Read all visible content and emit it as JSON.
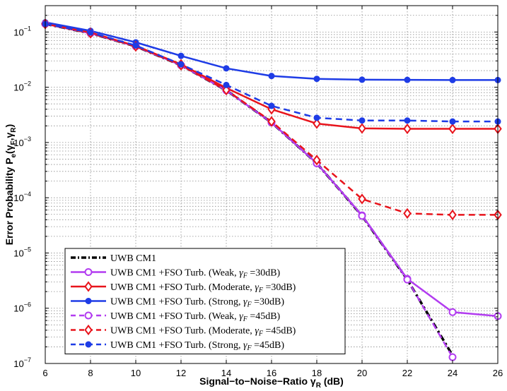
{
  "chart_data": {
    "type": "line",
    "xscale": "linear",
    "yscale": "log",
    "xlabel": {
      "main": "Signal−to−Noise−Ratio γ",
      "sub": "R",
      "tail": " (dB)"
    },
    "ylabel": {
      "main": "Error Probability P",
      "sub": "e",
      "args": "(γ",
      "sub2": "F",
      "comma": ",γ",
      "sub3": "R",
      "close": ")"
    },
    "xlim": [
      6,
      26
    ],
    "ylim": [
      1e-07,
      0.3
    ],
    "xticks": [
      "6",
      "8",
      "10",
      "12",
      "14",
      "16",
      "18",
      "20",
      "22",
      "24",
      "26"
    ],
    "yticks": [
      {
        "base": "10",
        "exp": "−7"
      },
      {
        "base": "10",
        "exp": "−6"
      },
      {
        "base": "10",
        "exp": "−5"
      },
      {
        "base": "10",
        "exp": "−4"
      },
      {
        "base": "10",
        "exp": "−3"
      },
      {
        "base": "10",
        "exp": "−2"
      },
      {
        "base": "10",
        "exp": "−1"
      }
    ],
    "grid": "dotted-major-minor",
    "legend_position": "bottom-left",
    "series": [
      {
        "name": "UWB CM1",
        "label": {
          "text": "UWB CM1"
        },
        "color": "#000000",
        "dash": "dashdot",
        "marker": "none",
        "x": [
          6,
          8,
          10,
          12,
          14,
          16,
          18,
          20,
          22,
          24
        ],
        "y": [
          0.14,
          0.095,
          0.055,
          0.025,
          0.0088,
          0.0023,
          0.00042,
          4.7e-05,
          3.3e-06,
          1.4e-07
        ]
      },
      {
        "name": "UWB CM1 +FSO Turb. (Weak, γF =30dB)",
        "label": {
          "text": "UWB CM1 +FSO Turb. (Weak, ",
          "g": "γ",
          "gsub": "F",
          "val": " =30dB)"
        },
        "color": "#b23cf0",
        "dash": "solid",
        "marker": "circle",
        "x": [
          6,
          8,
          10,
          12,
          14,
          16,
          18,
          20,
          22,
          24,
          26
        ],
        "y": [
          0.14,
          0.095,
          0.055,
          0.025,
          0.0088,
          0.0023,
          0.00042,
          4.8e-05,
          3.4e-06,
          8.5e-07,
          7.2e-07
        ]
      },
      {
        "name": "UWB CM1 +FSO Turb. (Moderate, γF =30dB)",
        "label": {
          "text": "UWB CM1 +FSO Turb. (Moderate, ",
          "g": "γ",
          "gsub": "F",
          "val": " =30dB)"
        },
        "color": "#e8141c",
        "dash": "solid",
        "marker": "diamond",
        "x": [
          6,
          8,
          10,
          12,
          14,
          16,
          18,
          20,
          22,
          24,
          26
        ],
        "y": [
          0.14,
          0.098,
          0.056,
          0.026,
          0.0097,
          0.004,
          0.0022,
          0.0018,
          0.00177,
          0.00177,
          0.00177
        ]
      },
      {
        "name": "UWB CM1 +FSO Turb. (Strong, γF =30dB)",
        "label": {
          "text": "UWB CM1 +FSO Turb. (Strong, ",
          "g": "γ",
          "gsub": "F",
          "val": " =30dB)"
        },
        "color": "#1e3ce6",
        "dash": "solid",
        "marker": "dot",
        "x": [
          6,
          8,
          10,
          12,
          14,
          16,
          18,
          20,
          22,
          24,
          26
        ],
        "y": [
          0.15,
          0.105,
          0.065,
          0.037,
          0.022,
          0.016,
          0.0142,
          0.0137,
          0.0136,
          0.0135,
          0.0135
        ]
      },
      {
        "name": "UWB CM1 +FSO Turb. (Weak, γF =45dB)",
        "label": {
          "text": "UWB CM1 +FSO Turb. (Weak, ",
          "g": "γ",
          "gsub": "F",
          "val": " =45dB)"
        },
        "color": "#b23cf0",
        "dash": "dashed",
        "marker": "circle",
        "x": [
          6,
          8,
          10,
          12,
          14,
          16,
          18,
          20,
          22,
          24
        ],
        "y": [
          0.14,
          0.095,
          0.055,
          0.025,
          0.0088,
          0.0023,
          0.00042,
          4.7e-05,
          3.3e-06,
          1.3e-07
        ]
      },
      {
        "name": "UWB CM1 +FSO Turb. (Moderate, γF =45dB)",
        "label": {
          "text": "UWB CM1 +FSO Turb. (Moderate, ",
          "g": "γ",
          "gsub": "F",
          "val": " =45dB)"
        },
        "color": "#e8141c",
        "dash": "dashed",
        "marker": "diamond",
        "x": [
          6,
          8,
          10,
          12,
          14,
          16,
          18,
          20,
          22,
          24,
          26
        ],
        "y": [
          0.14,
          0.095,
          0.055,
          0.025,
          0.0089,
          0.0024,
          0.00048,
          9.5e-05,
          5.2e-05,
          4.9e-05,
          4.9e-05
        ]
      },
      {
        "name": "UWB CM1 +FSO Turb. (Strong, γF =45dB)",
        "label": {
          "text": "UWB CM1 +FSO Turb. (Strong, ",
          "g": "γ",
          "gsub": "F",
          "val": " =45dB)"
        },
        "color": "#1e3ce6",
        "dash": "dashed",
        "marker": "dot",
        "x": [
          6,
          8,
          10,
          12,
          14,
          16,
          18,
          20,
          22,
          24,
          26
        ],
        "y": [
          0.14,
          0.098,
          0.057,
          0.026,
          0.011,
          0.0046,
          0.0028,
          0.0025,
          0.0025,
          0.0024,
          0.0024
        ]
      }
    ]
  }
}
